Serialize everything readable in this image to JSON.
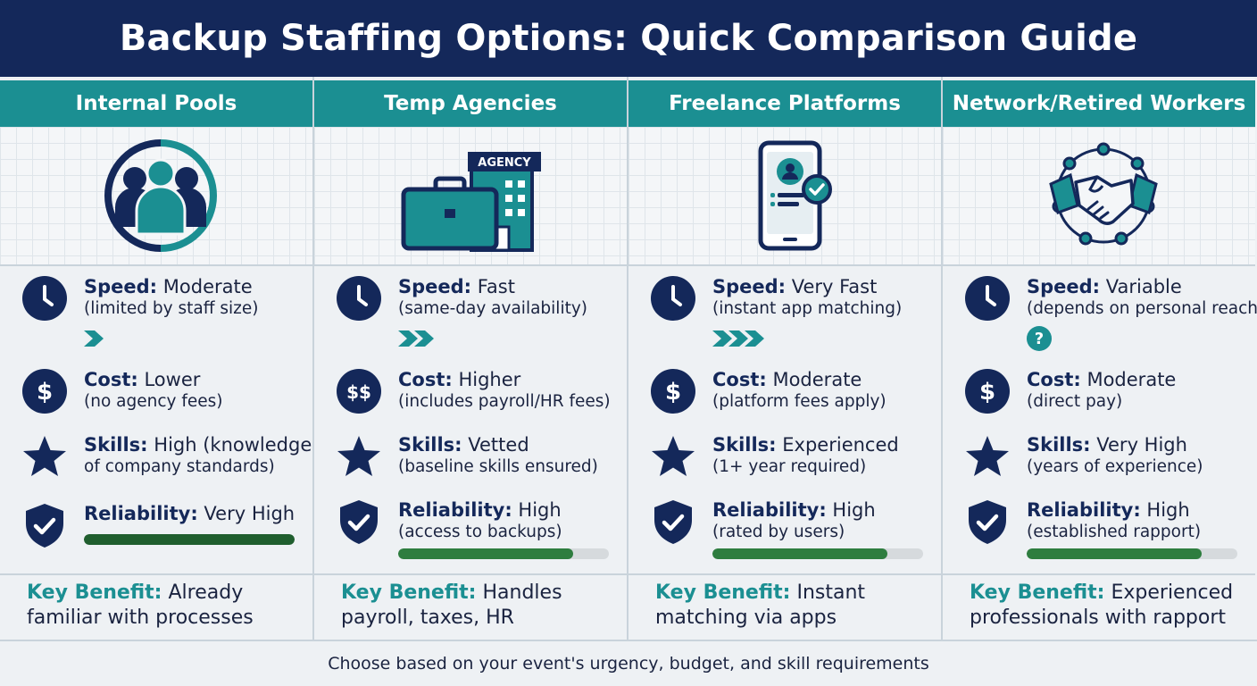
{
  "title": "Backup Staffing Options: Quick Comparison Guide",
  "colors": {
    "navy": "#14285a",
    "teal": "#1b8f92",
    "reliability_green": "#2e7d3f",
    "reliability_dark": "#1f5e2e"
  },
  "columns": [
    {
      "header": "Internal Pools",
      "icon": "team-circle-icon",
      "speed": {
        "label": "Speed:",
        "value": "Moderate",
        "note": "(limited by staff size)",
        "indicator": "1 chevron"
      },
      "cost": {
        "label": "Cost:",
        "value": "Lower",
        "note": "(no agency fees)",
        "icon": "$"
      },
      "skills": {
        "label": "Skills:",
        "value": "High (knowledge",
        "note": "of company standards)"
      },
      "reliability": {
        "label": "Reliability:",
        "value": "Very High",
        "note": "",
        "level": 1.0
      },
      "benefit": {
        "label": "Key Benefit:",
        "line1": "Already",
        "line2": "familiar with processes"
      }
    },
    {
      "header": "Temp Agencies",
      "icon": "briefcase-agency-icon",
      "agency_sign": "AGENCY",
      "speed": {
        "label": "Speed:",
        "value": "Fast",
        "note": "(same-day availability)",
        "indicator": "2 chevrons"
      },
      "cost": {
        "label": "Cost:",
        "value": "Higher",
        "note": "(includes payroll/HR fees)",
        "icon": "$$"
      },
      "skills": {
        "label": "Skills:",
        "value": "Vetted",
        "note": "(baseline skills ensured)"
      },
      "reliability": {
        "label": "Reliability:",
        "value": "High",
        "note": "(access to backups)",
        "level": 0.83
      },
      "benefit": {
        "label": "Key Benefit:",
        "line1": "Handles",
        "line2": "payroll, taxes, HR"
      }
    },
    {
      "header": "Freelance Platforms",
      "icon": "mobile-profile-check-icon",
      "speed": {
        "label": "Speed:",
        "value": "Very Fast",
        "note": "(instant app matching)",
        "indicator": "3 chevrons"
      },
      "cost": {
        "label": "Cost:",
        "value": "Moderate",
        "note": "(platform fees apply)",
        "icon": "$"
      },
      "skills": {
        "label": "Skills:",
        "value": "Experienced",
        "note": "(1+ year required)"
      },
      "reliability": {
        "label": "Reliability:",
        "value": "High",
        "note": "(rated by users)",
        "level": 0.83
      },
      "benefit": {
        "label": "Key Benefit:",
        "line1": "Instant",
        "line2": "matching via apps"
      }
    },
    {
      "header": "Network/Retired Workers",
      "icon": "handshake-network-icon",
      "speed": {
        "label": "Speed:",
        "value": "Variable",
        "note": "(depends on personal reach)",
        "indicator": "?"
      },
      "cost": {
        "label": "Cost:",
        "value": "Moderate",
        "note": "(direct pay)",
        "icon": "$"
      },
      "skills": {
        "label": "Skills:",
        "value": "Very High",
        "note": "(years of experience)"
      },
      "reliability": {
        "label": "Reliability:",
        "value": "High",
        "note": "(established rapport)",
        "level": 0.83
      },
      "benefit": {
        "label": "Key Benefit:",
        "line1": "Experienced",
        "line2": "professionals with rapport"
      }
    }
  ],
  "footer": "Choose based on your event's urgency, budget, and skill requirements"
}
